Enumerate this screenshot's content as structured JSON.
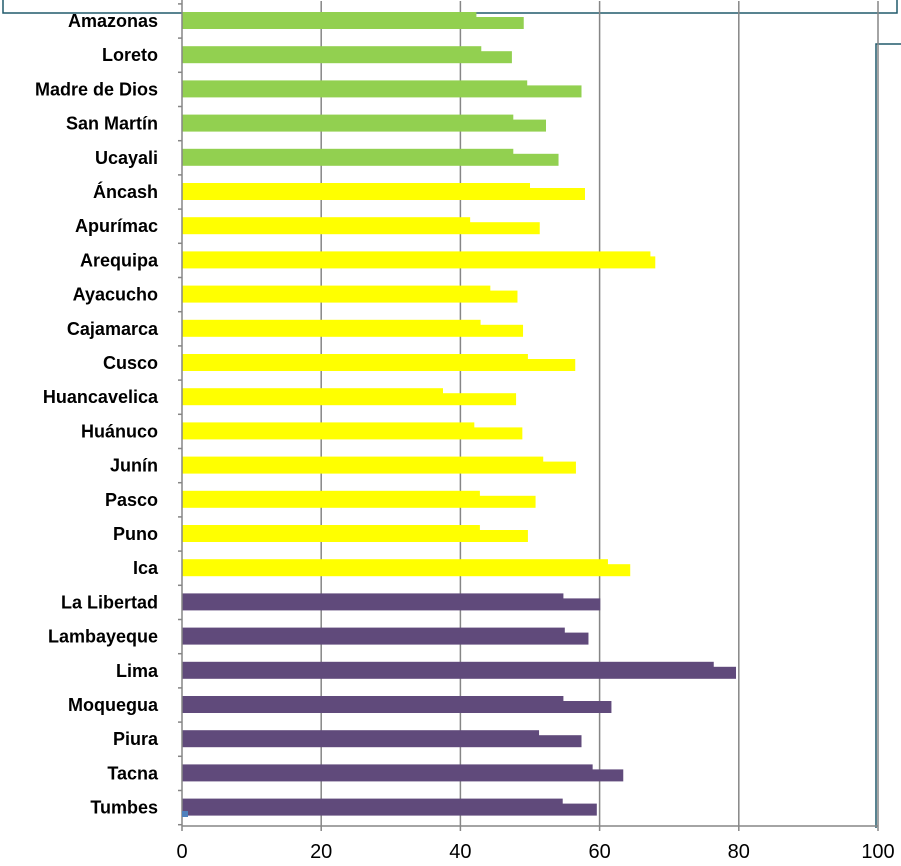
{
  "chart_data": {
    "type": "bar",
    "orientation": "horizontal",
    "categories": [
      "Amazonas",
      "Loreto",
      "Madre de Dios",
      "San Martín",
      "Ucayali",
      "Áncash",
      "Apurímac",
      "Arequipa",
      "Ayacucho",
      "Cajamarca",
      "Cusco",
      "Huancavelica",
      "Huánuco",
      "Junín",
      "Pasco",
      "Puno",
      "Ica",
      "La Libertad",
      "Lambayeque",
      "Lima",
      "Moquegua",
      "Piura",
      "Tacna",
      "Tumbes"
    ],
    "series": [
      {
        "values": [
          42.3,
          43.0,
          49.6,
          47.6,
          47.6,
          50.0,
          41.4,
          67.3,
          44.3,
          42.9,
          49.7,
          37.5,
          42.0,
          51.9,
          42.8,
          42.8,
          61.2,
          54.8,
          55.0,
          76.4,
          54.8,
          51.3,
          59.0,
          54.7
        ]
      },
      {
        "values": [
          49.1,
          47.4,
          57.4,
          52.3,
          54.1,
          57.9,
          51.4,
          68.0,
          48.2,
          49.0,
          56.5,
          48.0,
          48.9,
          56.6,
          50.8,
          49.7,
          64.4,
          60.1,
          58.4,
          79.6,
          61.7,
          57.4,
          63.4,
          59.6
        ]
      }
    ],
    "region_colors": [
      "#92d050",
      "#92d050",
      "#92d050",
      "#92d050",
      "#92d050",
      "#ffff00",
      "#ffff00",
      "#ffff00",
      "#ffff00",
      "#ffff00",
      "#ffff00",
      "#ffff00",
      "#ffff00",
      "#ffff00",
      "#ffff00",
      "#ffff00",
      "#ffff00",
      "#604a7b",
      "#604a7b",
      "#604a7b",
      "#604a7b",
      "#604a7b",
      "#604a7b",
      "#604a7b"
    ],
    "xticks": [
      "0",
      "20",
      "40",
      "60",
      "80",
      "100"
    ],
    "xlim": [
      0,
      100
    ],
    "grid": true,
    "title": "",
    "xlabel": "",
    "ylabel": ""
  }
}
